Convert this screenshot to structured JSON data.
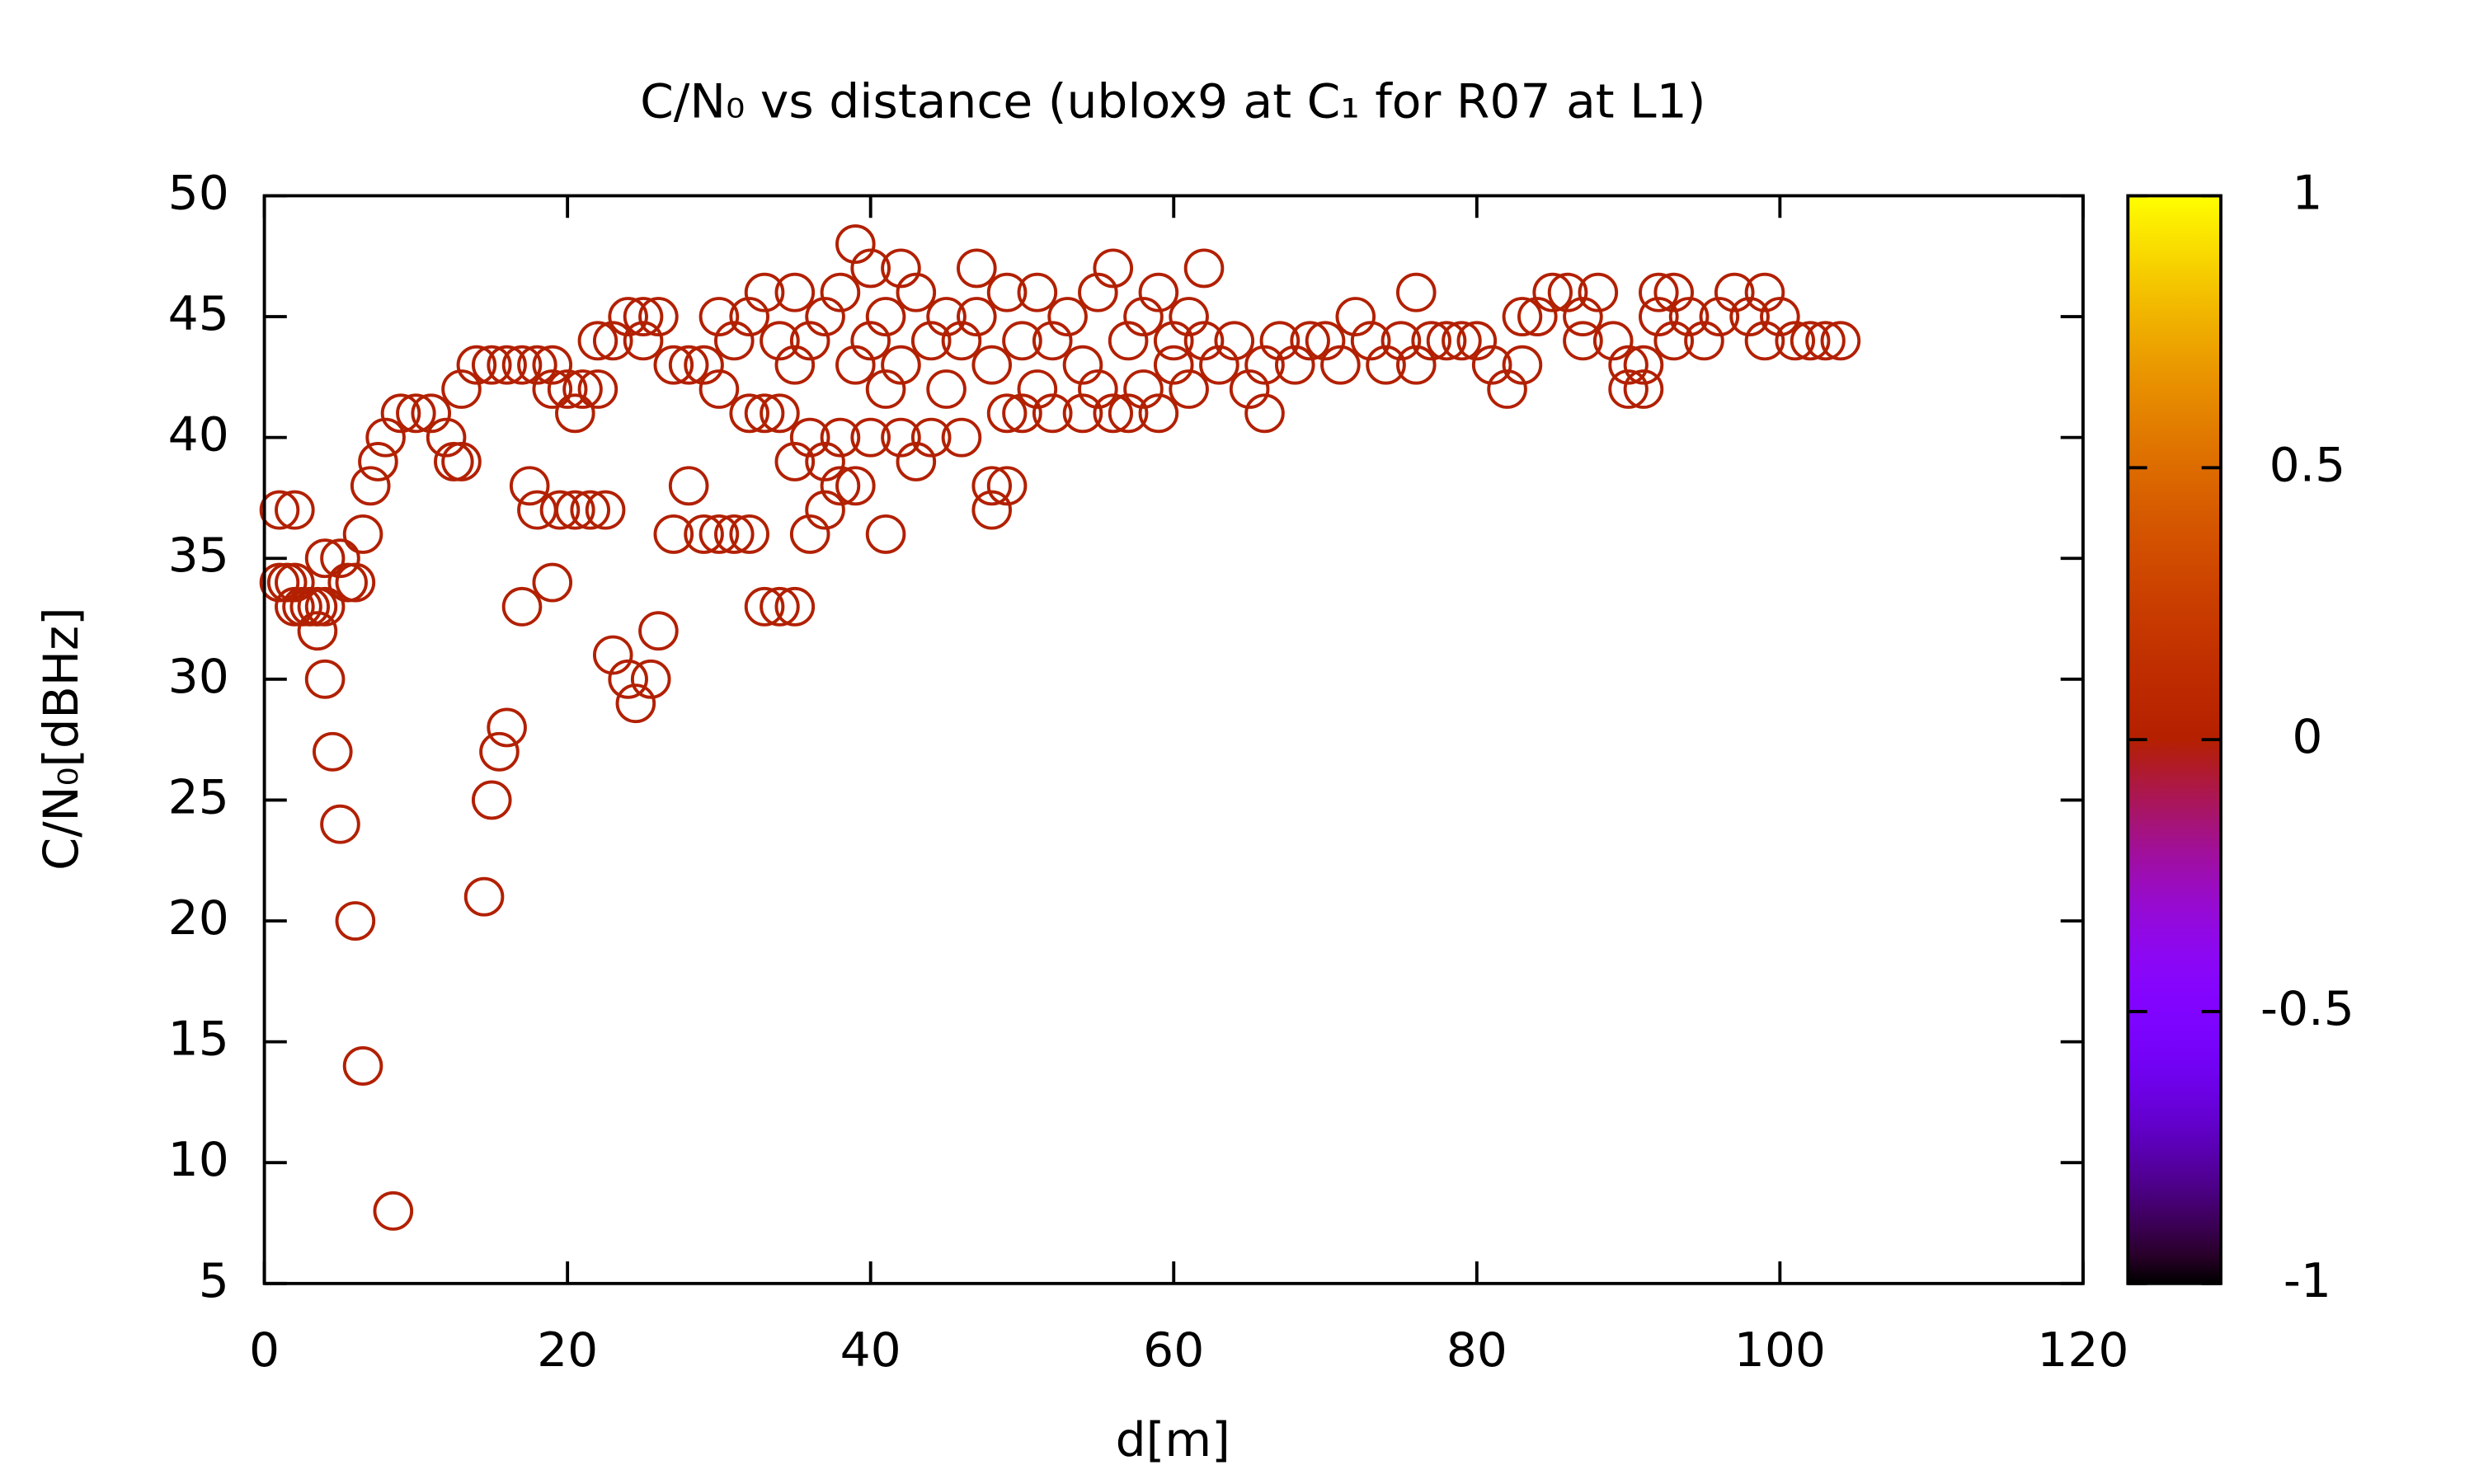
{
  "chart_data": {
    "type": "scatter",
    "title": "C/N₀ vs distance (ublox9 at C₁ for R07 at L1)",
    "xlabel": "d[m]",
    "ylabel": "C/N₀[dBHz]",
    "xlim": [
      0,
      120
    ],
    "xticks": [
      0,
      20,
      40,
      60,
      80,
      100,
      120
    ],
    "ylim": [
      5,
      50
    ],
    "yticks": [
      5,
      10,
      15,
      20,
      25,
      30,
      35,
      40,
      45,
      50
    ],
    "cblim": [
      -1,
      1
    ],
    "cbticks": [
      -1,
      -0.5,
      0,
      0.5,
      1
    ],
    "color": "#b22000",
    "x": [
      1,
      2,
      1,
      1.5,
      2,
      2,
      2.5,
      3,
      3.5,
      4,
      3.5,
      4,
      4,
      5,
      5.5,
      6,
      4.5,
      5,
      6,
      6.5,
      8.5,
      6.5,
      7,
      7.5,
      8,
      9,
      10,
      11,
      12,
      12.5,
      13,
      13,
      14,
      15,
      16,
      17,
      18,
      19,
      19,
      20,
      20.5,
      21,
      22,
      22,
      23,
      24,
      25,
      25,
      26,
      14.5,
      15,
      15.5,
      16,
      17,
      17.5,
      18,
      19,
      19.5,
      20.5,
      21.5,
      22.5,
      23,
      24,
      24.5,
      25.5,
      26,
      27,
      27,
      28,
      28,
      29,
      29,
      30,
      30,
      30,
      31,
      31,
      32,
      32,
      32,
      33,
      33,
      33,
      34,
      34,
      34,
      35,
      35,
      35,
      35,
      36,
      36,
      36,
      37,
      37,
      37,
      38,
      38,
      38,
      39,
      39,
      39,
      40,
      40,
      40,
      41,
      41,
      41,
      42,
      42,
      42,
      43,
      43,
      44,
      44,
      45,
      45,
      46,
      46,
      47,
      47,
      48,
      48,
      48,
      49,
      49,
      49,
      50,
      50,
      51,
      51,
      52,
      52,
      53,
      54,
      54,
      55,
      55,
      56,
      56,
      57,
      57,
      58,
      58,
      59,
      59,
      60,
      60,
      61,
      61,
      62,
      62,
      63,
      64,
      65,
      66,
      66,
      67,
      68,
      69,
      70,
      71,
      72,
      73,
      74,
      75,
      76,
      76,
      77,
      78,
      79,
      80,
      81,
      82,
      83,
      83,
      84,
      85,
      86,
      87,
      87,
      88,
      89,
      90,
      90,
      91,
      91,
      92,
      92,
      93,
      93,
      94,
      95,
      96,
      97,
      98,
      99,
      99,
      100,
      101,
      102,
      103,
      104
    ],
    "values": [
      37,
      37,
      34,
      34,
      34,
      33,
      33,
      33,
      33,
      33,
      32,
      30,
      35,
      35,
      34,
      34,
      27,
      24,
      20,
      14,
      8,
      36,
      38,
      39,
      40,
      41,
      41,
      41,
      40,
      39,
      39,
      42,
      43,
      43,
      43,
      43,
      43,
      43,
      42,
      42,
      41,
      42,
      42,
      44,
      44,
      45,
      44,
      45,
      45,
      21,
      25,
      27,
      28,
      33,
      38,
      37,
      34,
      37,
      37,
      37,
      37,
      31,
      30,
      29,
      30,
      32,
      36,
      43,
      43,
      38,
      43,
      36,
      36,
      42,
      45,
      36,
      44,
      36,
      41,
      45,
      33,
      41,
      46,
      33,
      41,
      44,
      33,
      39,
      43,
      46,
      36,
      40,
      44,
      37,
      39,
      45,
      38,
      40,
      46,
      48,
      38,
      43,
      47,
      40,
      44,
      45,
      36,
      42,
      47,
      40,
      43,
      46,
      39,
      44,
      40,
      42,
      45,
      40,
      44,
      47,
      45,
      38,
      37,
      43,
      38,
      41,
      46,
      41,
      44,
      42,
      46,
      44,
      41,
      45,
      43,
      41,
      46,
      42,
      47,
      41,
      44,
      41,
      45,
      42,
      46,
      41,
      44,
      43,
      45,
      42,
      47,
      44,
      43,
      44,
      42,
      41,
      43,
      44,
      43,
      44,
      44,
      43,
      45,
      44,
      43,
      44,
      46,
      43,
      44,
      44,
      44,
      44,
      43,
      42,
      45,
      43,
      45,
      46,
      46,
      45,
      44,
      46,
      44,
      43,
      42,
      42,
      43,
      46,
      45,
      46,
      44,
      45,
      44,
      45,
      46,
      45,
      44,
      46,
      45,
      44,
      44,
      44,
      44
    ]
  }
}
